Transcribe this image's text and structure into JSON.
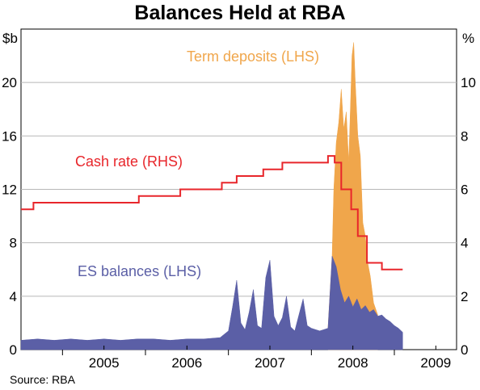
{
  "title": "Balances Held at RBA",
  "source": "Source: RBA",
  "colors": {
    "es_balances": "#5b5fa6",
    "term_deposits": "#f0a64b",
    "cash_rate": "#e8262b",
    "grid": "#b8b8b8"
  },
  "chart_data": {
    "type": "area",
    "title": "Balances Held at RBA",
    "xlabel": "",
    "left_axis": {
      "unit": "$b",
      "ylim": [
        0,
        24
      ],
      "ticks": [
        0,
        4,
        8,
        12,
        16,
        20
      ]
    },
    "right_axis": {
      "unit": "%",
      "ylim": [
        0,
        12
      ],
      "ticks": [
        0,
        2,
        4,
        6,
        8,
        10
      ]
    },
    "x_ticks": [
      "2005",
      "2006",
      "2007",
      "2008",
      "2009"
    ],
    "xlim": [
      2004.5,
      2009.75
    ],
    "grid": "horizontal",
    "series": [
      {
        "name": "Cash rate (RHS)",
        "axis": "right",
        "type": "step",
        "x": [
          2004.5,
          2004.65,
          2005.66,
          2005.92,
          2006.42,
          2006.92,
          2007.1,
          2007.42,
          2007.65,
          2008.2,
          2008.28,
          2008.36,
          2008.48,
          2008.56,
          2008.67,
          2008.85,
          2009.1
        ],
        "values": [
          5.25,
          5.5,
          5.5,
          5.75,
          6.0,
          6.25,
          6.5,
          6.75,
          7.0,
          7.25,
          7.0,
          6.0,
          5.25,
          4.25,
          3.25,
          3.0,
          3.0
        ]
      },
      {
        "name": "ES balances (LHS)",
        "axis": "left",
        "type": "area",
        "x": [
          2004.5,
          2004.7,
          2004.9,
          2005.1,
          2005.3,
          2005.5,
          2005.7,
          2005.9,
          2006.1,
          2006.3,
          2006.5,
          2006.7,
          2006.9,
          2007.0,
          2007.05,
          2007.1,
          2007.15,
          2007.2,
          2007.25,
          2007.3,
          2007.35,
          2007.4,
          2007.45,
          2007.5,
          2007.55,
          2007.6,
          2007.65,
          2007.7,
          2007.75,
          2007.8,
          2007.85,
          2007.9,
          2007.95,
          2008.0,
          2008.05,
          2008.1,
          2008.15,
          2008.2,
          2008.25,
          2008.3,
          2008.35,
          2008.4,
          2008.45,
          2008.5,
          2008.55,
          2008.6,
          2008.65,
          2008.7,
          2008.75,
          2008.8,
          2008.85,
          2008.9,
          2008.95,
          2009.0,
          2009.05,
          2009.1
        ],
        "values": [
          0.7,
          0.8,
          0.7,
          0.8,
          0.7,
          0.8,
          0.7,
          0.8,
          0.8,
          0.7,
          0.8,
          0.8,
          0.9,
          1.4,
          3.2,
          5.2,
          2.0,
          1.5,
          2.8,
          4.5,
          1.8,
          1.6,
          5.4,
          6.7,
          2.5,
          1.8,
          2.4,
          4.0,
          1.7,
          1.4,
          2.6,
          3.8,
          1.8,
          1.6,
          1.5,
          1.4,
          1.5,
          1.6,
          7.0,
          6.2,
          4.5,
          3.5,
          4.0,
          3.2,
          3.8,
          3.0,
          3.3,
          2.8,
          3.0,
          2.5,
          2.6,
          2.3,
          2.1,
          1.8,
          1.6,
          1.3
        ]
      },
      {
        "name": "Term deposits (LHS)",
        "axis": "left",
        "type": "area",
        "note": "total balance (ES + term deposits)",
        "x": [
          2008.2,
          2008.25,
          2008.27,
          2008.3,
          2008.33,
          2008.36,
          2008.39,
          2008.42,
          2008.45,
          2008.47,
          2008.49,
          2008.51,
          2008.53,
          2008.56,
          2008.59,
          2008.62,
          2008.65,
          2008.68,
          2008.71,
          2008.75,
          2008.8
        ],
        "values": [
          1.6,
          7.0,
          12.0,
          15.5,
          17.0,
          19.5,
          16.5,
          17.8,
          14.0,
          18.0,
          22.0,
          23.0,
          20.0,
          16.0,
          14.5,
          9.5,
          8.5,
          6.5,
          5.5,
          3.5,
          2.6
        ]
      }
    ]
  },
  "annotations": {
    "term_deposits": "Term deposits (LHS)",
    "cash_rate": "Cash rate (RHS)",
    "es_balances": "ES balances (LHS)"
  }
}
